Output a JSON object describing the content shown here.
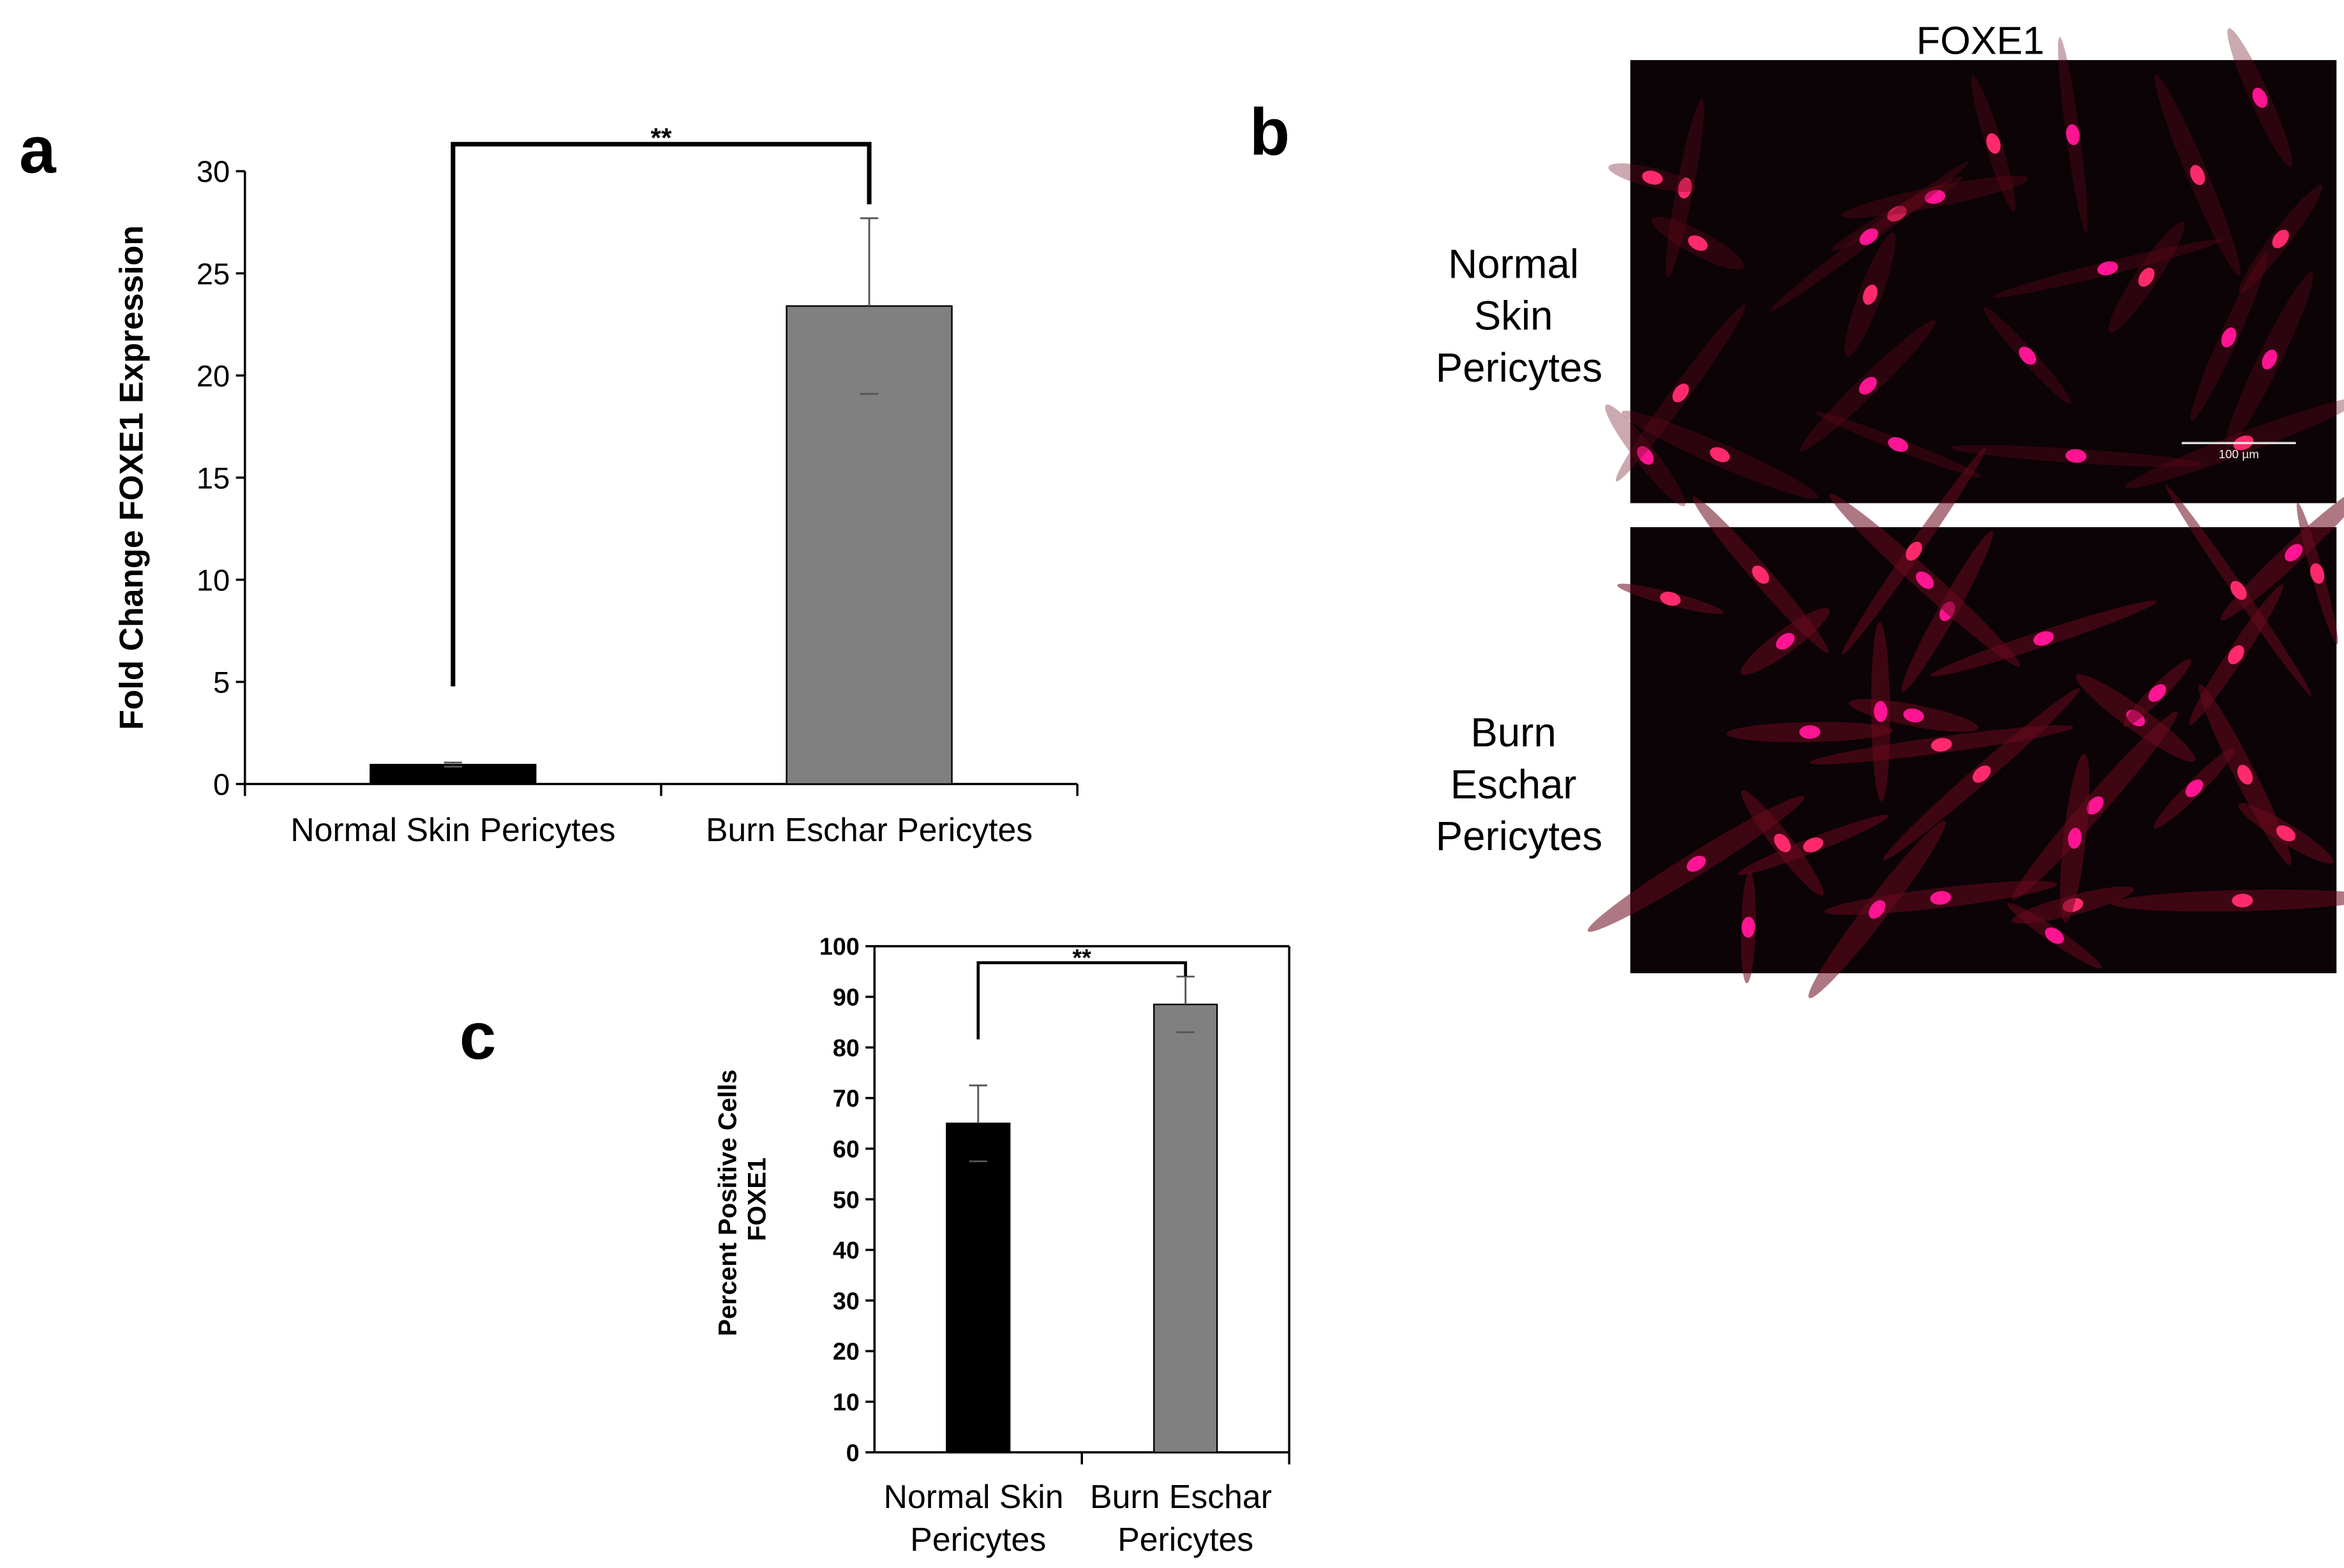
{
  "panel_labels": [
    "a",
    "b",
    "c"
  ],
  "chart_data": [
    {
      "type": "bar",
      "ylabel": "Fold Change FOXE1 Expression",
      "categories": [
        "Normal Skin Pericytes",
        "Burn Eschar Pericytes"
      ],
      "values": [
        0.95,
        23.4
      ],
      "errors": [
        0.1,
        4.3
      ],
      "colors": [
        "#000000",
        "#808080"
      ],
      "ylim": [
        0,
        30
      ],
      "yticks": [
        0,
        5,
        10,
        15,
        20,
        25,
        30
      ],
      "annotation": "**"
    },
    {
      "type": "bar",
      "ylabel": "Percent Positive Cells FOXE1",
      "categories": [
        "Normal Skin Pericytes",
        "Burn Eschar Pericytes"
      ],
      "values": [
        65,
        88.5
      ],
      "errors": [
        7.5,
        5.5
      ],
      "colors": [
        "#000000",
        "#808080"
      ],
      "ylim": [
        0,
        100
      ],
      "yticks": [
        0,
        10,
        20,
        30,
        40,
        50,
        60,
        70,
        80,
        90,
        100
      ],
      "annotation": "**"
    }
  ],
  "micrograph": {
    "title": "FOXE1",
    "rows": [
      "Normal Skin Pericytes",
      "Burn Eschar Pericytes"
    ],
    "scale_bar": "100 µm"
  }
}
